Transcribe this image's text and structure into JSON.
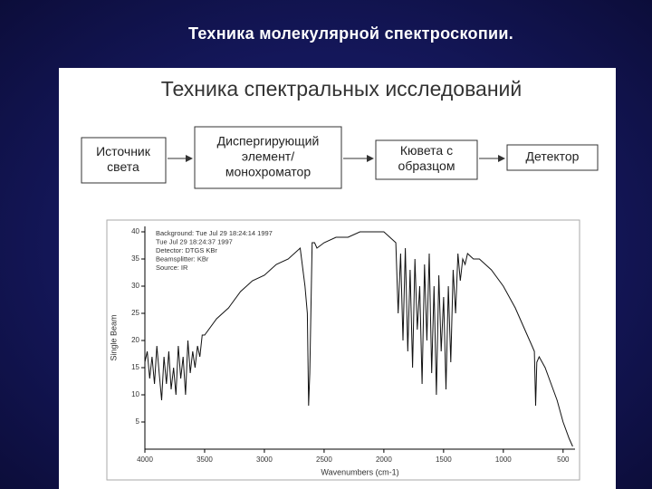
{
  "header": {
    "title": "Техника молекулярной спектроскопии."
  },
  "diagram": {
    "title": "Техника спектральных исследований",
    "nodes": [
      {
        "lines": [
          "Источник",
          "света"
        ]
      },
      {
        "lines": [
          "Диспергирующий",
          "элемент/",
          "монохроматор"
        ]
      },
      {
        "lines": [
          "Кювета с",
          "образцом"
        ]
      },
      {
        "lines": [
          "Детектор"
        ]
      }
    ]
  },
  "chart_data": {
    "type": "line",
    "color": "#111111",
    "xlabel": "Wavenumbers (cm-1)",
    "ylabel": "Single Beam",
    "annotations": [
      "Background: Tue Jul 29 18:24:14 1997",
      "Tue Jul 29 18:24:37 1997",
      "Detector: DTGS KBr",
      "Beamsplitter: KBr",
      "Source: IR"
    ],
    "xlim": [
      4000,
      400
    ],
    "ylim": [
      0,
      41
    ],
    "xticks": [
      4000,
      3500,
      3000,
      2500,
      2000,
      1500,
      1000,
      500
    ],
    "yticks": [
      5,
      10,
      15,
      20,
      25,
      30,
      35,
      40
    ],
    "x": [
      4000,
      3980,
      3960,
      3940,
      3920,
      3900,
      3880,
      3860,
      3840,
      3820,
      3800,
      3780,
      3760,
      3740,
      3720,
      3700,
      3680,
      3660,
      3640,
      3620,
      3600,
      3580,
      3560,
      3540,
      3520,
      3500,
      3400,
      3300,
      3200,
      3100,
      3000,
      2900,
      2800,
      2700,
      2660,
      2640,
      2630,
      2620,
      2600,
      2580,
      2560,
      2500,
      2400,
      2300,
      2200,
      2100,
      2000,
      1950,
      1900,
      1880,
      1860,
      1840,
      1820,
      1800,
      1780,
      1760,
      1740,
      1720,
      1700,
      1680,
      1660,
      1640,
      1620,
      1600,
      1580,
      1560,
      1540,
      1520,
      1500,
      1480,
      1460,
      1440,
      1420,
      1400,
      1380,
      1360,
      1340,
      1320,
      1300,
      1250,
      1200,
      1100,
      1000,
      900,
      800,
      760,
      740,
      730,
      720,
      700,
      650,
      600,
      550,
      500,
      450,
      420
    ],
    "values": [
      16,
      18,
      13,
      17,
      12,
      19,
      14,
      9,
      17,
      12,
      18,
      11,
      15,
      10,
      19,
      13,
      17,
      10,
      20,
      14,
      18,
      15,
      19,
      17,
      21,
      21,
      24,
      26,
      29,
      31,
      32,
      34,
      35,
      37,
      30,
      25,
      8,
      14,
      38,
      38,
      37,
      38,
      39,
      39,
      40,
      40,
      40,
      39,
      38,
      25,
      36,
      20,
      37,
      18,
      33,
      15,
      35,
      22,
      30,
      12,
      34,
      20,
      36,
      14,
      30,
      10,
      32,
      18,
      28,
      11,
      30,
      16,
      33,
      25,
      36,
      31,
      35,
      34,
      36,
      35,
      35,
      33,
      30,
      26,
      21,
      19,
      18,
      8,
      16,
      17,
      15,
      12,
      9,
      5,
      2,
      0.5
    ]
  }
}
